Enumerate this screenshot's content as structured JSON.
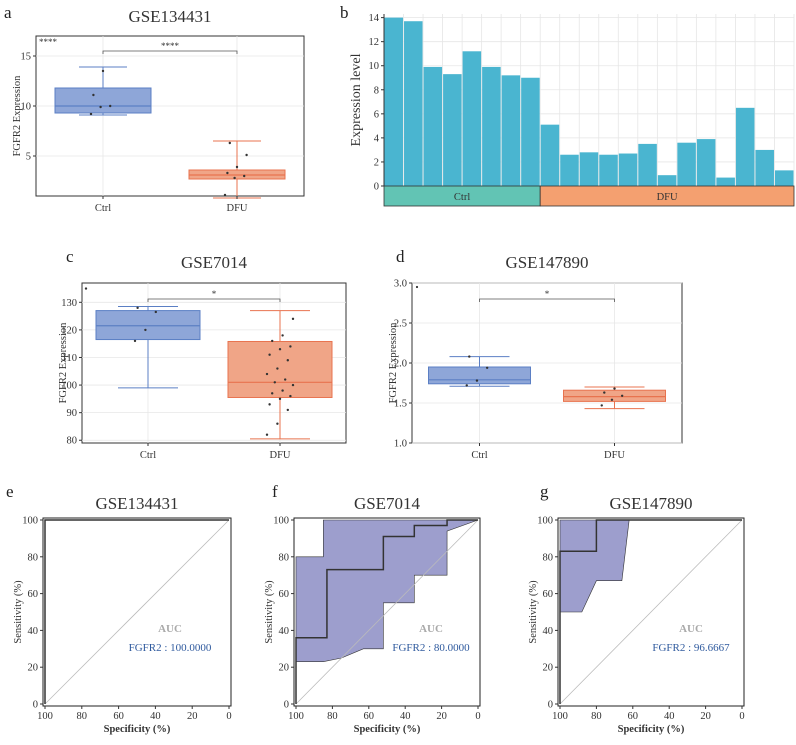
{
  "colors": {
    "ctrl_box": "#8ea6d8",
    "ctrl_line": "#5b7fc4",
    "dfu_box": "#f0a587",
    "dfu_line": "#e8734f",
    "bar": "#4ab5d0",
    "ctrl_band": "#62c4b4",
    "dfu_band": "#f4a070",
    "roc_fill": "#8c8dc4",
    "roc_line": "#333333"
  },
  "chart_data": [
    {
      "panel": "a",
      "type": "box",
      "title": "GSE134431",
      "ylabel": "FGFR2 Expression",
      "ylim": [
        1,
        17
      ],
      "yticks": [
        5,
        10,
        15
      ],
      "groups": [
        {
          "name": "Ctrl",
          "min": 9.1,
          "q1": 9.3,
          "median": 10.0,
          "q3": 11.8,
          "max": 13.9,
          "points": [
            9.2,
            9.9,
            10.0,
            11.1,
            13.5
          ]
        },
        {
          "name": "DFU",
          "min": 0.8,
          "q1": 2.7,
          "median": 3.1,
          "q3": 3.6,
          "max": 6.5,
          "points": [
            1.1,
            2.8,
            3.0,
            3.3,
            3.9,
            5.1,
            6.3
          ]
        }
      ],
      "signif": "****",
      "corner_label": "****"
    },
    {
      "panel": "b",
      "type": "bar",
      "title": "",
      "ylabel": "Expression level",
      "ylim": [
        0,
        14.3
      ],
      "yticks": [
        0,
        2,
        4,
        6,
        8,
        10,
        12,
        14
      ],
      "values": [
        14.0,
        13.7,
        9.9,
        9.3,
        11.2,
        9.9,
        9.2,
        9.0,
        5.1,
        2.6,
        2.8,
        2.6,
        2.7,
        3.5,
        0.9,
        3.6,
        3.9,
        0.7,
        6.5,
        3.0,
        1.3
      ],
      "groups": [
        {
          "name": "Ctrl",
          "count": 8
        },
        {
          "name": "DFU",
          "count": 13
        }
      ]
    },
    {
      "panel": "c",
      "type": "box",
      "title": "GSE7014",
      "ylabel": "FGFR2 Expression",
      "ylim": [
        79,
        137
      ],
      "yticks": [
        80,
        90,
        100,
        110,
        120,
        130
      ],
      "groups": [
        {
          "name": "Ctrl",
          "min": 99,
          "q1": 116.5,
          "median": 121.5,
          "q3": 127,
          "max": 128.5,
          "points": [
            116,
            120,
            126.5,
            128
          ],
          "outliers": [
            135
          ]
        },
        {
          "name": "DFU",
          "min": 80.5,
          "q1": 95.5,
          "median": 101,
          "q3": 115.8,
          "max": 127,
          "points": [
            82,
            86,
            91,
            93,
            95,
            96,
            97,
            98,
            100,
            101,
            102,
            104,
            106,
            109,
            111,
            113,
            114,
            116,
            118,
            124
          ]
        }
      ],
      "signif": "*"
    },
    {
      "panel": "d",
      "type": "box",
      "title": "GSE147890",
      "ylabel": "FGFR2 Expression",
      "ylim": [
        1.0,
        3.0
      ],
      "yticks": [
        1.0,
        1.5,
        2.0,
        2.5,
        3.0
      ],
      "groups": [
        {
          "name": "Ctrl",
          "min": 1.71,
          "q1": 1.74,
          "median": 1.79,
          "q3": 1.95,
          "max": 2.08,
          "points": [
            1.72,
            1.78,
            1.94,
            2.08
          ]
        },
        {
          "name": "DFU",
          "min": 1.43,
          "q1": 1.52,
          "median": 1.58,
          "q3": 1.66,
          "max": 1.7,
          "points": [
            1.47,
            1.54,
            1.59,
            1.63,
            1.68
          ]
        }
      ],
      "signif": "*",
      "corner_dot": true
    },
    {
      "panel": "e",
      "type": "roc",
      "title": "GSE134431",
      "xlabel": "Specificity (%)",
      "ylabel": "Sensitivity (%)",
      "ticks": [
        0,
        20,
        40,
        60,
        80,
        100
      ],
      "auc_title": "AUC",
      "auc_label": "FGFR2 : 100.0000",
      "curve": [
        [
          100,
          0
        ],
        [
          100,
          100
        ],
        [
          0,
          100
        ]
      ],
      "ci_upper": [],
      "ci_lower": []
    },
    {
      "panel": "f",
      "type": "roc",
      "title": "GSE7014",
      "xlabel": "Specificity (%)",
      "ylabel": "Sensitivity (%)",
      "ticks": [
        0,
        20,
        40,
        60,
        80,
        100
      ],
      "auc_title": "AUC",
      "auc_label": "FGFR2 : 80.0000",
      "curve": [
        [
          100,
          0
        ],
        [
          100,
          36
        ],
        [
          83,
          36
        ],
        [
          83,
          73
        ],
        [
          52,
          73
        ],
        [
          52,
          91
        ],
        [
          35,
          91
        ],
        [
          35,
          97
        ],
        [
          17,
          97
        ],
        [
          17,
          100
        ],
        [
          0,
          100
        ]
      ],
      "ci_upper": [
        [
          100,
          23
        ],
        [
          100,
          80
        ],
        [
          85,
          80
        ],
        [
          85,
          100
        ],
        [
          0,
          100
        ]
      ],
      "ci_lower": [
        [
          100,
          23
        ],
        [
          85,
          23
        ],
        [
          75,
          25
        ],
        [
          63,
          30
        ],
        [
          52,
          30
        ],
        [
          52,
          55
        ],
        [
          35,
          55
        ],
        [
          35,
          70
        ],
        [
          17,
          70
        ],
        [
          17,
          94
        ],
        [
          0,
          100
        ]
      ]
    },
    {
      "panel": "g",
      "type": "roc",
      "title": "GSE147890",
      "xlabel": "Specificity (%)",
      "ylabel": "Sensitivity (%)",
      "ticks": [
        0,
        20,
        40,
        60,
        80,
        100
      ],
      "auc_title": "AUC",
      "auc_label": "FGFR2 : 96.6667",
      "curve": [
        [
          100,
          0
        ],
        [
          100,
          83
        ],
        [
          80,
          83
        ],
        [
          80,
          100
        ],
        [
          0,
          100
        ]
      ],
      "ci_upper": [
        [
          100,
          50
        ],
        [
          100,
          100
        ],
        [
          62,
          100
        ]
      ],
      "ci_lower": [
        [
          100,
          50
        ],
        [
          88,
          50
        ],
        [
          80,
          67
        ],
        [
          66,
          67
        ],
        [
          62,
          100
        ]
      ]
    }
  ]
}
